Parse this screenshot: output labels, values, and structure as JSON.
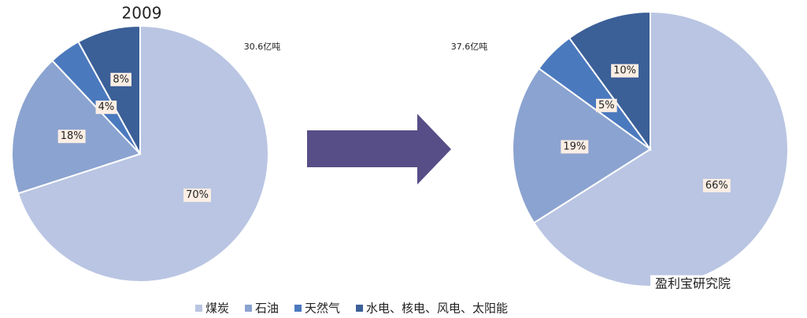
{
  "chart_data": [
    {
      "type": "pie",
      "title": "2009",
      "annotation": "30.6亿吨",
      "categories": [
        "煤炭",
        "石油",
        "天然气",
        "水电、核电、风电、太阳能"
      ],
      "values": [
        70,
        18,
        4,
        8
      ],
      "value_labels": [
        "70%",
        "18%",
        "4%",
        "8%"
      ],
      "colors": [
        "#b9c5e2",
        "#8ba3d0",
        "#4b79be",
        "#3b5f97"
      ]
    },
    {
      "type": "pie",
      "annotation": "37.6亿吨",
      "categories": [
        "煤炭",
        "石油",
        "天然气",
        "水电、核电、风电、太阳能"
      ],
      "values": [
        66,
        19,
        5,
        10
      ],
      "value_labels": [
        "66%",
        "19%",
        "5%",
        "10%"
      ],
      "colors": [
        "#b9c5e2",
        "#8ba3d0",
        "#4b79be",
        "#3b5f97"
      ]
    }
  ],
  "watermark": "盈利宝研究院"
}
